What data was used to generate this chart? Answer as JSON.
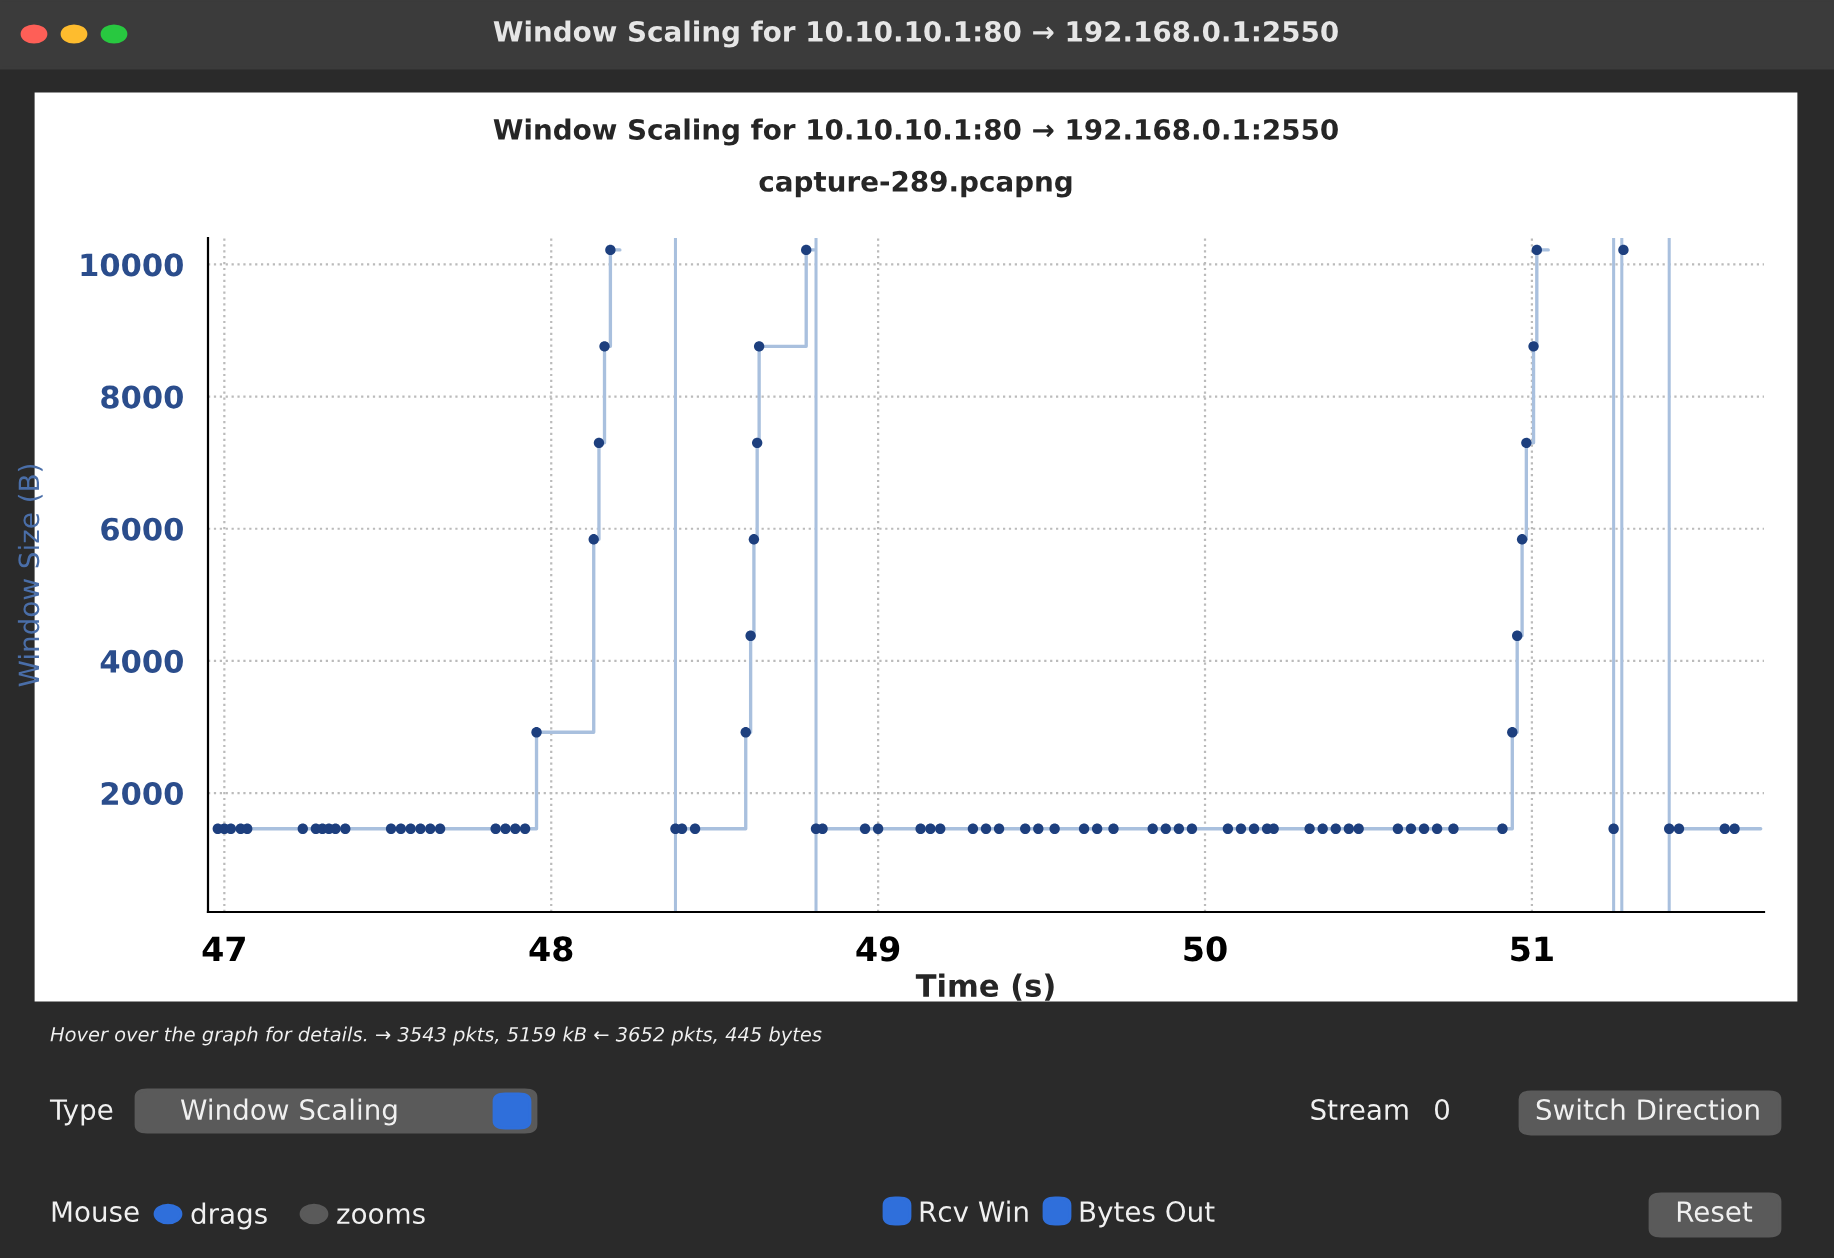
{
  "chart_data": {
    "type": "step",
    "title": "Window Scaling for 10.10.10.1:80 → 192.168.0.1:2550",
    "subtitle": "capture-289.pcapng",
    "xlabel": "Time (s)",
    "ylabel": "Window Size (B)",
    "xlim": [
      46.95,
      51.71
    ],
    "xticks": [
      47,
      48,
      49,
      50,
      51
    ],
    "ylim": [
      200,
      10400
    ],
    "yticks": [
      2000,
      4000,
      6000,
      8000,
      10000
    ],
    "grid": true,
    "series": [
      {
        "color": "#a9c0de",
        "marker": "none",
        "x": [
          46.97,
          47.955,
          48.13,
          48.146,
          48.163,
          48.181,
          48.2,
          48.21,
          48.38,
          48.595,
          48.61,
          48.62,
          48.63,
          48.636,
          48.78,
          48.8,
          48.805,
          48.81,
          50.94,
          50.955,
          50.97,
          50.983,
          51.005,
          51.015,
          51.04,
          51.05,
          51.42,
          51.7
        ],
        "values": [
          1460,
          2920,
          5840,
          7300,
          8760,
          10220,
          10220,
          null,
          1460,
          2920,
          4380,
          5840,
          7300,
          8760,
          10220,
          10220,
          null,
          1460,
          2920,
          4380,
          5840,
          7300,
          8760,
          10220,
          10220,
          null,
          1460,
          1460
        ]
      },
      {
        "type": "scatter",
        "color": "#1d3f7e",
        "marker": "circle",
        "x": [
          46.98,
          47.0,
          47.02,
          47.05,
          47.07,
          47.24,
          47.28,
          47.3,
          47.32,
          47.34,
          47.37,
          47.51,
          47.54,
          47.57,
          47.6,
          47.63,
          47.66,
          47.83,
          47.86,
          47.89,
          47.92,
          47.955,
          48.13,
          48.146,
          48.163,
          48.181,
          48.38,
          48.4,
          48.44,
          48.595,
          48.61,
          48.62,
          48.63,
          48.636,
          48.78,
          48.81,
          48.83,
          48.96,
          49.0,
          49.13,
          49.16,
          49.19,
          49.29,
          49.33,
          49.37,
          49.45,
          49.49,
          49.54,
          49.63,
          49.67,
          49.72,
          49.84,
          49.88,
          49.92,
          49.96,
          50.07,
          50.11,
          50.15,
          50.19,
          50.21,
          50.32,
          50.36,
          50.4,
          50.44,
          50.47,
          50.59,
          50.63,
          50.67,
          50.71,
          50.76,
          50.91,
          50.94,
          50.955,
          50.97,
          50.983,
          51.005,
          51.015,
          51.25,
          51.28,
          51.42,
          51.45,
          51.59,
          51.62
        ],
        "values": [
          1460,
          1460,
          1460,
          1460,
          1460,
          1460,
          1460,
          1460,
          1460,
          1460,
          1460,
          1460,
          1460,
          1460,
          1460,
          1460,
          1460,
          1460,
          1460,
          1460,
          1460,
          2920,
          5840,
          7300,
          8760,
          10220,
          1460,
          1460,
          1460,
          2920,
          4380,
          5840,
          7300,
          8760,
          10220,
          1460,
          1460,
          1460,
          1460,
          1460,
          1460,
          1460,
          1460,
          1460,
          1460,
          1460,
          1460,
          1460,
          1460,
          1460,
          1460,
          1460,
          1460,
          1460,
          1460,
          1460,
          1460,
          1460,
          1460,
          1460,
          1460,
          1460,
          1460,
          1460,
          1460,
          1460,
          1460,
          1460,
          1460,
          1460,
          1460,
          2920,
          4380,
          5840,
          7300,
          8760,
          10220,
          1460,
          10220,
          1460,
          1460,
          1460,
          1460
        ]
      }
    ],
    "ref_lines": [
      {
        "axis": "x",
        "value": 48.38,
        "color": "#a9c0de"
      },
      {
        "axis": "x",
        "value": 48.81,
        "color": "#a9c0de"
      },
      {
        "axis": "x",
        "value": 51.25,
        "color": "#a9c0de"
      },
      {
        "axis": "x",
        "value": 51.275,
        "color": "#a9c0de"
      },
      {
        "axis": "x",
        "value": 51.42,
        "color": "#a9c0de"
      }
    ],
    "annotations": [
      "Window Scaling for 10.10.10.1:80 → 192.168.0.1:2550",
      "Hover over the graph for details. → 3543 pkts, 5159 kB ← 3652 pkts, 445 bytes",
      "Type",
      "Window Scaling",
      "Stream",
      "0",
      "Switch Direction",
      "Mouse",
      "drags",
      "zooms",
      "Rcv Win",
      "Bytes Out",
      "Reset"
    ]
  }
}
